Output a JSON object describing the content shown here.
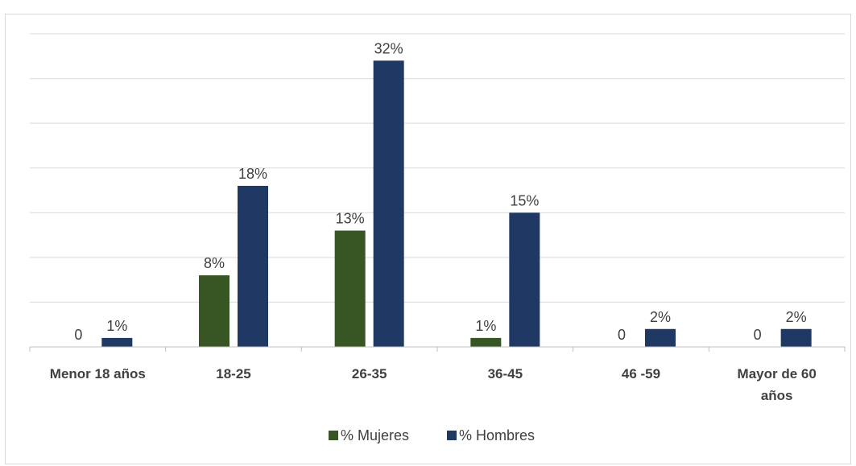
{
  "chart_data": {
    "type": "bar",
    "title": "",
    "xlabel": "",
    "ylabel": "",
    "categories": [
      [
        "Menor 18 años"
      ],
      [
        "18-25"
      ],
      [
        "26-35"
      ],
      [
        "36-45"
      ],
      [
        "46 -59"
      ],
      [
        "Mayor  de 60",
        "años"
      ]
    ],
    "series": [
      {
        "name": "% Mujeres",
        "color": "#375623",
        "values": [
          0,
          8,
          13,
          1,
          0,
          0
        ],
        "labels": [
          "0",
          "8%",
          "13%",
          "1%",
          "0",
          "0"
        ]
      },
      {
        "name": "%  Hombres",
        "color": "#1f3864",
        "values": [
          1,
          18,
          32,
          15,
          2,
          2
        ],
        "labels": [
          "1%",
          "18%",
          "32%",
          "15%",
          "2%",
          "2%"
        ]
      }
    ],
    "ylim": [
      0,
      35
    ],
    "gridlines": true,
    "legend": "bottom-center"
  }
}
